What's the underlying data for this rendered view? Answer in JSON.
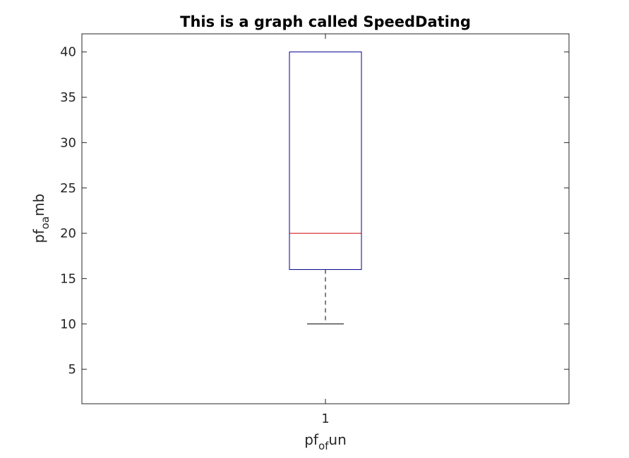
{
  "chart_data": {
    "type": "box",
    "title": "This is a graph called SpeedDating",
    "xlabel": {
      "base": "pf",
      "sub": "of",
      "tail": "un"
    },
    "ylabel": {
      "base": "pf",
      "sub": "oa",
      "tail": "mb"
    },
    "categories": [
      "1"
    ],
    "ylim": [
      1.2,
      42
    ],
    "yticks": [
      5,
      10,
      15,
      20,
      25,
      30,
      35,
      40
    ],
    "yticklabels": [
      "5",
      "10",
      "15",
      "20",
      "25",
      "30",
      "35",
      "40"
    ],
    "grid": false,
    "boxes": [
      {
        "category": "1",
        "lower_whisker": 10,
        "q1": 16,
        "median": 20,
        "q3": 40,
        "upper_whisker": 40
      }
    ],
    "colors": {
      "box": "#00008b",
      "median": "#cc0000",
      "whisker": "#000000",
      "axes": "#262626"
    }
  }
}
